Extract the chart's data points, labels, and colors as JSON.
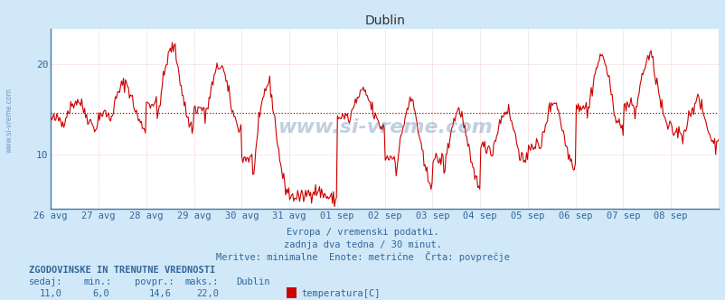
{
  "title": "Dublin",
  "bg_color": "#d0e8f8",
  "plot_bg_color": "#ffffff",
  "line_color": "#cc0000",
  "grid_color": "#dd9999",
  "avg_line_color": "#cc0000",
  "avg_value": 14.6,
  "y_min": 4,
  "y_max": 24,
  "yticks": [
    10,
    20
  ],
  "tick_color": "#336699",
  "title_color": "#333333",
  "footer_lines": [
    "Evropa / vremenski podatki.",
    "zadnja dva tedna / 30 minut.",
    "Meritve: minimalne  Enote: metrične  Črta: povprečje"
  ],
  "stats_header": "ZGODOVINSKE IN TRENUTNE VREDNOSTI",
  "stats_labels": [
    "sedaj:",
    "min.:",
    "povpr.:",
    "maks.:"
  ],
  "stats_values": [
    "11,0",
    "6,0",
    "14,6",
    "22,0"
  ],
  "legend_label": "temperatura[C]",
  "legend_city": "Dublin",
  "watermark": "www.si-vreme.com",
  "x_labels": [
    "26 avg",
    "27 avg",
    "28 avg",
    "29 avg",
    "30 avg",
    "31 avg",
    "01 sep",
    "02 sep",
    "03 sep",
    "04 sep",
    "05 sep",
    "06 sep",
    "07 sep",
    "08 sep"
  ],
  "n_points": 672,
  "spine_color": "#4477aa"
}
